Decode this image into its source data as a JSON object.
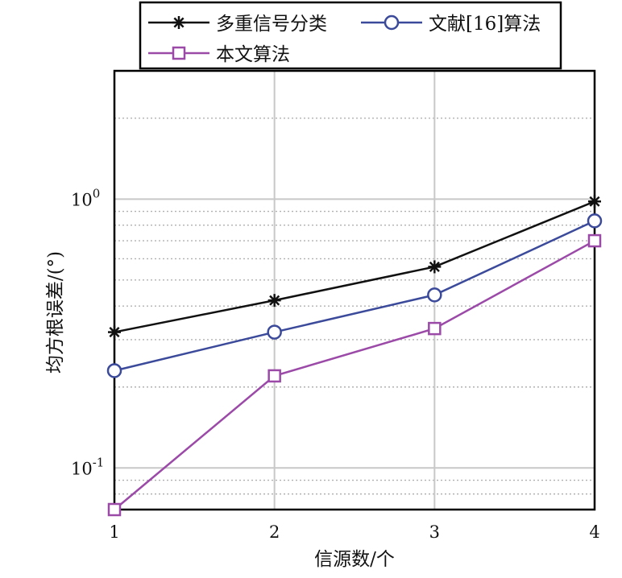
{
  "chart_data": {
    "type": "line",
    "x": [
      1,
      2,
      3,
      4
    ],
    "xlabel": "信源数/个",
    "ylabel": "均方根误差/(°)",
    "yscale": "log",
    "xlim": [
      1,
      4
    ],
    "ylim": [
      0.07,
      3.0
    ],
    "x_ticks": [
      "1",
      "2",
      "3",
      "4"
    ],
    "y_ticks": [
      {
        "value": 0.1,
        "base": "10",
        "exp": "-1"
      },
      {
        "value": 1,
        "base": "10",
        "exp": "0"
      }
    ],
    "grid": true,
    "legend_position": "top",
    "series": [
      {
        "name": "多重信号分类",
        "values": [
          0.32,
          0.42,
          0.56,
          0.98
        ],
        "color": "#111111",
        "marker": "asterisk"
      },
      {
        "name": "文献[16]算法",
        "values": [
          0.23,
          0.32,
          0.44,
          0.83
        ],
        "color": "#3b4a9a",
        "marker": "circle"
      },
      {
        "name": "本文算法",
        "values": [
          0.07,
          0.22,
          0.33,
          0.7
        ],
        "color": "#9b4aa8",
        "marker": "square"
      }
    ]
  }
}
